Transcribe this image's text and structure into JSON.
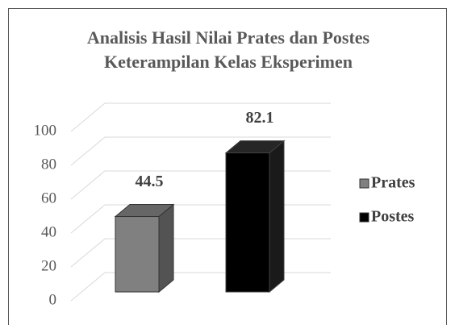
{
  "chart_data": {
    "type": "bar3d",
    "title": "Analisis Hasil Nilai Prates dan Postes Keterampilan Kelas Eksperimen",
    "categories": [
      null
    ],
    "series": [
      {
        "name": "Prates",
        "color": "#808080",
        "values": [
          44.5
        ]
      },
      {
        "name": "Postes",
        "color": "#000000",
        "values": [
          82.1
        ]
      }
    ],
    "ylim": [
      0,
      100
    ],
    "yticks": [
      0,
      20,
      40,
      60,
      80,
      100
    ],
    "grid": true,
    "legend": "right"
  }
}
